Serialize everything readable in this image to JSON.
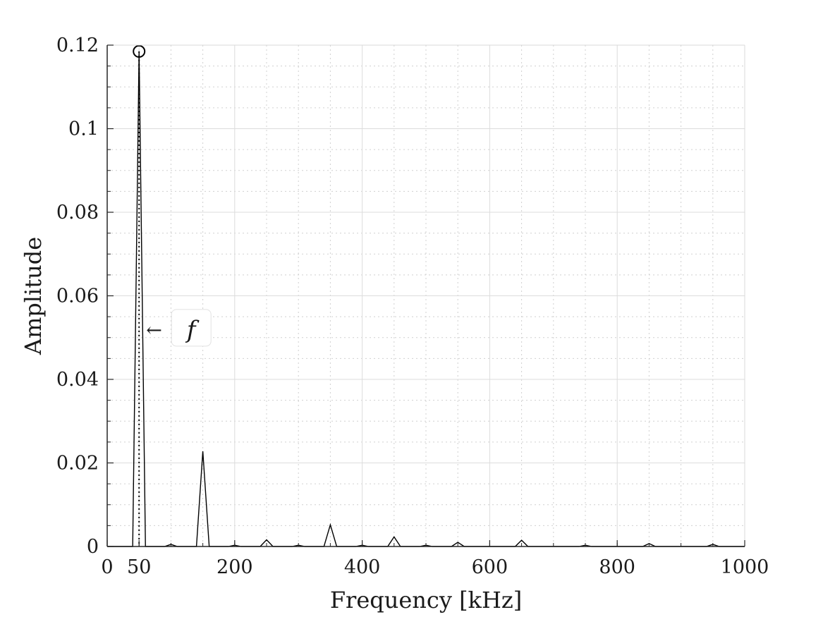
{
  "chart_data": {
    "type": "line",
    "title": "",
    "xlabel": "Frequency [kHz]",
    "ylabel": "Amplitude",
    "xlim": [
      0,
      1000
    ],
    "ylim": [
      0,
      0.12
    ],
    "grid": true,
    "minor_grid": true,
    "x_ticks": [
      0,
      50,
      200,
      400,
      600,
      800,
      1000
    ],
    "x_tick_labels": [
      "0",
      "50",
      "200",
      "400",
      "600",
      "800",
      "1000"
    ],
    "y_ticks": [
      0,
      0.02,
      0.04,
      0.06,
      0.08,
      0.1,
      0.12
    ],
    "y_tick_labels": [
      "0",
      "0.02",
      "0.04",
      "0.06",
      "0.08",
      "0.1",
      "0.12"
    ],
    "series": [
      {
        "x": [
          0,
          40,
          50,
          60,
          90,
          100,
          110,
          140,
          150,
          160,
          190,
          200,
          210,
          240,
          250,
          260,
          290,
          300,
          310,
          340,
          350,
          360,
          390,
          400,
          410,
          440,
          450,
          460,
          490,
          500,
          510,
          540,
          550,
          560,
          640,
          650,
          660,
          740,
          750,
          760,
          840,
          850,
          860,
          940,
          950,
          960,
          1000
        ],
        "y": [
          0,
          0,
          0.1185,
          0,
          0,
          0.0005,
          0,
          0,
          0.0228,
          0,
          0,
          0.0003,
          0,
          0,
          0.0016,
          0,
          0,
          0.0003,
          0,
          0,
          0.0052,
          0,
          0,
          0.0003,
          0,
          0,
          0.0023,
          0,
          0,
          0.0003,
          0,
          0,
          0.001,
          0,
          0,
          0.0015,
          0,
          0,
          0.0003,
          0,
          0,
          0.0007,
          0,
          0,
          0.0005,
          0,
          0
        ],
        "color": "#000000"
      }
    ],
    "peak_marker": {
      "x": 50,
      "y": 0.1185
    },
    "annotations": [
      {
        "text": "f",
        "arrow": "←",
        "x": 50,
        "y": 0.052
      }
    ]
  }
}
